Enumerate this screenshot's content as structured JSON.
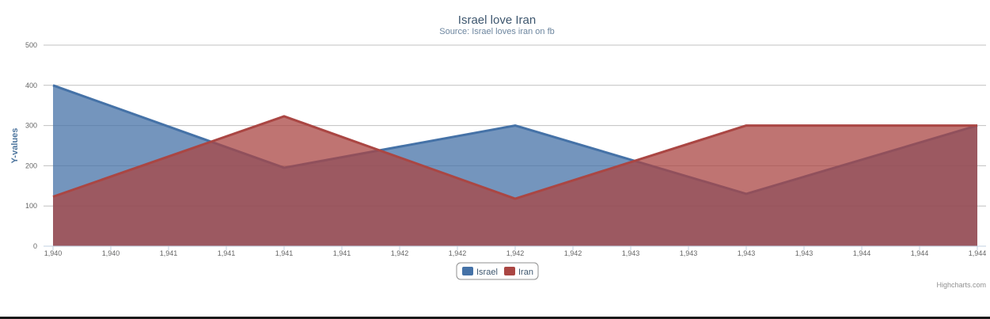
{
  "chart_data": {
    "type": "area",
    "title": "Israel love Iran",
    "subtitle": "Source:  Israel loves iran on fb",
    "ylabel": "Y-values",
    "xlabel": "",
    "ylim": [
      0,
      500
    ],
    "y_ticks": [
      "0",
      "100",
      "200",
      "300",
      "400",
      "500"
    ],
    "categories": [
      "1,940",
      "1,940",
      "1,941",
      "1,941",
      "1,941",
      "1,941",
      "1,942",
      "1,942",
      "1,942",
      "1,942",
      "1,943",
      "1,943",
      "1,943",
      "1,943",
      "1,944",
      "1,944",
      "1,944"
    ],
    "grid": true,
    "legend_position": "bottom-center",
    "series": [
      {
        "name": "Israel",
        "color": "#4572A7",
        "points": [
          {
            "x": 0,
            "y": 400
          },
          {
            "x": 4,
            "y": 195
          },
          {
            "x": 8,
            "y": 300
          },
          {
            "x": 12,
            "y": 130
          },
          {
            "x": 16,
            "y": 300
          }
        ]
      },
      {
        "name": "Iran",
        "color": "#AA4643",
        "points": [
          {
            "x": 0,
            "y": 123
          },
          {
            "x": 4,
            "y": 323
          },
          {
            "x": 8,
            "y": 118
          },
          {
            "x": 12,
            "y": 300
          },
          {
            "x": 16,
            "y": 300
          }
        ]
      }
    ]
  },
  "credits": "Highcharts.com"
}
